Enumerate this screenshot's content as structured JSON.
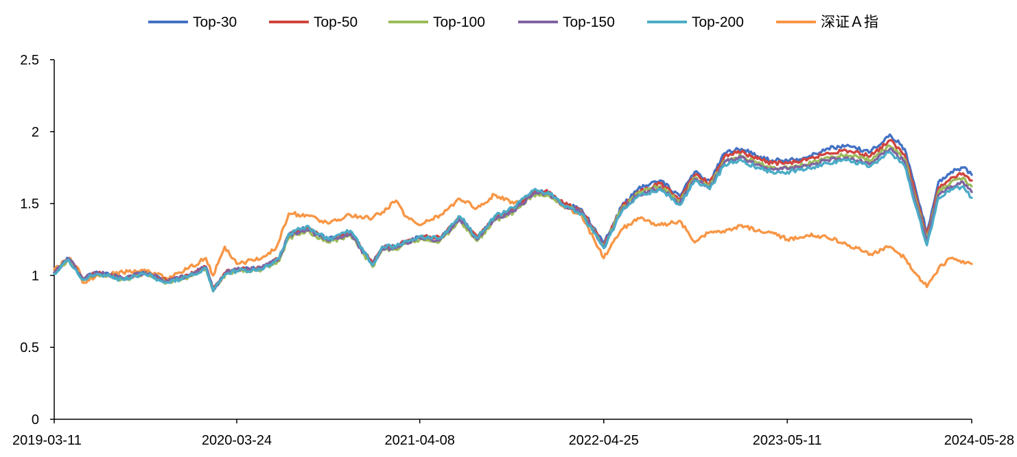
{
  "chart_data": {
    "type": "line",
    "title": "",
    "xlabel": "",
    "ylabel": "",
    "x_tick_labels": [
      "2019-03-11",
      "2020-03-24",
      "2021-04-08",
      "2022-04-25",
      "2023-05-11",
      "2024-05-28"
    ],
    "y_tick_labels": [
      "0",
      "0.5",
      "1",
      "1.5",
      "2",
      "2.5"
    ],
    "ylim": [
      0,
      2.5
    ],
    "grid": false,
    "legend_position": "top",
    "series": [
      {
        "name": "Top-30",
        "color": "#4472C4",
        "x": [
          "2019-03-11",
          "2019-04-10",
          "2019-05-09",
          "2019-06-10",
          "2019-08-01",
          "2019-09-15",
          "2019-10-31",
          "2019-12-15",
          "2020-01-20",
          "2020-02-04",
          "2020-03-01",
          "2020-03-24",
          "2020-05-15",
          "2020-06-20",
          "2020-07-10",
          "2020-08-15",
          "2020-09-30",
          "2020-11-15",
          "2020-12-31",
          "2021-01-20",
          "2021-02-18",
          "2021-03-10",
          "2021-04-08",
          "2021-05-20",
          "2021-07-01",
          "2021-08-05",
          "2021-09-10",
          "2021-10-20",
          "2021-11-30",
          "2021-12-31",
          "2022-01-31",
          "2022-03-10",
          "2022-04-25",
          "2022-06-01",
          "2022-07-05",
          "2022-08-20",
          "2022-09-30",
          "2022-10-31",
          "2022-12-01",
          "2023-01-01",
          "2023-02-05",
          "2023-03-10",
          "2023-04-10",
          "2023-05-11",
          "2023-06-20",
          "2023-07-31",
          "2023-09-10",
          "2023-10-31",
          "2023-12-10",
          "2024-01-10",
          "2024-02-05",
          "2024-02-25",
          "2024-03-20",
          "2024-04-15",
          "2024-05-10",
          "2024-05-28"
        ],
        "values": [
          1.02,
          1.12,
          0.98,
          1.02,
          0.98,
          1.02,
          0.96,
          1.0,
          1.06,
          0.9,
          1.02,
          1.04,
          1.05,
          1.12,
          1.28,
          1.33,
          1.25,
          1.3,
          1.08,
          1.2,
          1.2,
          1.24,
          1.27,
          1.26,
          1.4,
          1.26,
          1.4,
          1.46,
          1.58,
          1.58,
          1.5,
          1.46,
          1.22,
          1.48,
          1.6,
          1.66,
          1.55,
          1.72,
          1.66,
          1.85,
          1.88,
          1.83,
          1.8,
          1.8,
          1.82,
          1.88,
          1.9,
          1.86,
          1.98,
          1.88,
          1.55,
          1.3,
          1.65,
          1.72,
          1.75,
          1.7
        ]
      },
      {
        "name": "Top-50",
        "color": "#D0443E",
        "x": [
          "2019-03-11",
          "2019-04-10",
          "2019-05-09",
          "2019-06-10",
          "2019-08-01",
          "2019-09-15",
          "2019-10-31",
          "2019-12-15",
          "2020-01-20",
          "2020-02-04",
          "2020-03-01",
          "2020-03-24",
          "2020-05-15",
          "2020-06-20",
          "2020-07-10",
          "2020-08-15",
          "2020-09-30",
          "2020-11-15",
          "2020-12-31",
          "2021-01-20",
          "2021-02-18",
          "2021-03-10",
          "2021-04-08",
          "2021-05-20",
          "2021-07-01",
          "2021-08-05",
          "2021-09-10",
          "2021-10-20",
          "2021-11-30",
          "2021-12-31",
          "2022-01-31",
          "2022-03-10",
          "2022-04-25",
          "2022-06-01",
          "2022-07-05",
          "2022-08-20",
          "2022-09-30",
          "2022-10-31",
          "2022-12-01",
          "2023-01-01",
          "2023-02-05",
          "2023-03-10",
          "2023-04-10",
          "2023-05-11",
          "2023-06-20",
          "2023-07-31",
          "2023-09-10",
          "2023-10-31",
          "2023-12-10",
          "2024-01-10",
          "2024-02-05",
          "2024-02-25",
          "2024-03-20",
          "2024-04-15",
          "2024-05-10",
          "2024-05-28"
        ],
        "values": [
          1.02,
          1.12,
          0.98,
          1.02,
          0.98,
          1.02,
          0.96,
          1.0,
          1.06,
          0.9,
          1.02,
          1.04,
          1.05,
          1.12,
          1.28,
          1.33,
          1.25,
          1.3,
          1.08,
          1.2,
          1.2,
          1.24,
          1.27,
          1.26,
          1.4,
          1.26,
          1.4,
          1.46,
          1.58,
          1.58,
          1.5,
          1.45,
          1.21,
          1.47,
          1.58,
          1.64,
          1.53,
          1.7,
          1.64,
          1.83,
          1.86,
          1.81,
          1.78,
          1.78,
          1.8,
          1.85,
          1.87,
          1.83,
          1.94,
          1.84,
          1.52,
          1.27,
          1.61,
          1.68,
          1.71,
          1.66
        ]
      },
      {
        "name": "Top-100",
        "color": "#9BBB59",
        "x": [
          "2019-03-11",
          "2019-04-10",
          "2019-05-09",
          "2019-06-10",
          "2019-08-01",
          "2019-09-15",
          "2019-10-31",
          "2019-12-15",
          "2020-01-20",
          "2020-02-04",
          "2020-03-01",
          "2020-03-24",
          "2020-05-15",
          "2020-06-20",
          "2020-07-10",
          "2020-08-15",
          "2020-09-30",
          "2020-11-15",
          "2020-12-31",
          "2021-01-20",
          "2021-02-18",
          "2021-03-10",
          "2021-04-08",
          "2021-05-20",
          "2021-07-01",
          "2021-08-05",
          "2021-09-10",
          "2021-10-20",
          "2021-11-30",
          "2021-12-31",
          "2022-01-31",
          "2022-03-10",
          "2022-04-25",
          "2022-06-01",
          "2022-07-05",
          "2022-08-20",
          "2022-09-30",
          "2022-10-31",
          "2022-12-01",
          "2023-01-01",
          "2023-02-05",
          "2023-03-10",
          "2023-04-10",
          "2023-05-11",
          "2023-06-20",
          "2023-07-31",
          "2023-09-10",
          "2023-10-31",
          "2023-12-10",
          "2024-01-10",
          "2024-02-05",
          "2024-02-25",
          "2024-03-20",
          "2024-04-15",
          "2024-05-10",
          "2024-05-28"
        ],
        "values": [
          1.02,
          1.11,
          0.97,
          1.01,
          0.97,
          1.01,
          0.95,
          0.99,
          1.05,
          0.89,
          1.01,
          1.03,
          1.04,
          1.1,
          1.26,
          1.31,
          1.23,
          1.28,
          1.06,
          1.18,
          1.18,
          1.22,
          1.25,
          1.24,
          1.38,
          1.24,
          1.38,
          1.44,
          1.56,
          1.56,
          1.49,
          1.44,
          1.2,
          1.46,
          1.57,
          1.62,
          1.51,
          1.68,
          1.62,
          1.8,
          1.83,
          1.78,
          1.75,
          1.75,
          1.77,
          1.82,
          1.84,
          1.8,
          1.9,
          1.81,
          1.49,
          1.25,
          1.58,
          1.65,
          1.68,
          1.62
        ]
      },
      {
        "name": "Top-150",
        "color": "#8064A2",
        "x": [
          "2019-03-11",
          "2019-04-10",
          "2019-05-09",
          "2019-06-10",
          "2019-08-01",
          "2019-09-15",
          "2019-10-31",
          "2019-12-15",
          "2020-01-20",
          "2020-02-04",
          "2020-03-01",
          "2020-03-24",
          "2020-05-15",
          "2020-06-20",
          "2020-07-10",
          "2020-08-15",
          "2020-09-30",
          "2020-11-15",
          "2020-12-31",
          "2021-01-20",
          "2021-02-18",
          "2021-03-10",
          "2021-04-08",
          "2021-05-20",
          "2021-07-01",
          "2021-08-05",
          "2021-09-10",
          "2021-10-20",
          "2021-11-30",
          "2021-12-31",
          "2022-01-31",
          "2022-03-10",
          "2022-04-25",
          "2022-06-01",
          "2022-07-05",
          "2022-08-20",
          "2022-09-30",
          "2022-10-31",
          "2022-12-01",
          "2023-01-01",
          "2023-02-05",
          "2023-03-10",
          "2023-04-10",
          "2023-05-11",
          "2023-06-20",
          "2023-07-31",
          "2023-09-10",
          "2023-10-31",
          "2023-12-10",
          "2024-01-10",
          "2024-02-05",
          "2024-02-25",
          "2024-03-20",
          "2024-04-15",
          "2024-05-10",
          "2024-05-28"
        ],
        "values": [
          1.02,
          1.12,
          0.98,
          1.02,
          0.98,
          1.02,
          0.96,
          1.0,
          1.06,
          0.9,
          1.02,
          1.04,
          1.05,
          1.12,
          1.28,
          1.32,
          1.24,
          1.29,
          1.07,
          1.19,
          1.19,
          1.23,
          1.26,
          1.25,
          1.39,
          1.25,
          1.39,
          1.45,
          1.57,
          1.57,
          1.49,
          1.44,
          1.2,
          1.45,
          1.56,
          1.61,
          1.5,
          1.67,
          1.61,
          1.79,
          1.82,
          1.77,
          1.74,
          1.74,
          1.76,
          1.8,
          1.82,
          1.78,
          1.88,
          1.79,
          1.47,
          1.24,
          1.56,
          1.62,
          1.65,
          1.58
        ]
      },
      {
        "name": "Top-200",
        "color": "#4BACC6",
        "x": [
          "2019-03-11",
          "2019-04-10",
          "2019-05-09",
          "2019-06-10",
          "2019-08-01",
          "2019-09-15",
          "2019-10-31",
          "2019-12-15",
          "2020-01-20",
          "2020-02-04",
          "2020-03-01",
          "2020-03-24",
          "2020-05-15",
          "2020-06-20",
          "2020-07-10",
          "2020-08-15",
          "2020-09-30",
          "2020-11-15",
          "2020-12-31",
          "2021-01-20",
          "2021-02-18",
          "2021-03-10",
          "2021-04-08",
          "2021-05-20",
          "2021-07-01",
          "2021-08-05",
          "2021-09-10",
          "2021-10-20",
          "2021-11-30",
          "2021-12-31",
          "2022-01-31",
          "2022-03-10",
          "2022-04-25",
          "2022-06-01",
          "2022-07-05",
          "2022-08-20",
          "2022-09-30",
          "2022-10-31",
          "2022-12-01",
          "2023-01-01",
          "2023-02-05",
          "2023-03-10",
          "2023-04-10",
          "2023-05-11",
          "2023-06-20",
          "2023-07-31",
          "2023-09-10",
          "2023-10-31",
          "2023-12-10",
          "2024-01-10",
          "2024-02-05",
          "2024-02-25",
          "2024-03-20",
          "2024-04-15",
          "2024-05-10",
          "2024-05-28"
        ],
        "values": [
          1.01,
          1.11,
          0.97,
          1.01,
          0.97,
          1.01,
          0.95,
          0.99,
          1.05,
          0.89,
          1.01,
          1.03,
          1.04,
          1.12,
          1.29,
          1.34,
          1.25,
          1.31,
          1.07,
          1.2,
          1.2,
          1.24,
          1.27,
          1.26,
          1.41,
          1.26,
          1.41,
          1.47,
          1.59,
          1.58,
          1.49,
          1.43,
          1.19,
          1.44,
          1.55,
          1.6,
          1.49,
          1.66,
          1.6,
          1.77,
          1.8,
          1.75,
          1.72,
          1.72,
          1.74,
          1.78,
          1.8,
          1.76,
          1.86,
          1.76,
          1.45,
          1.21,
          1.54,
          1.6,
          1.62,
          1.54
        ]
      },
      {
        "name": "深证Ａ指",
        "color": "#F79646",
        "x": [
          "2019-03-11",
          "2019-04-10",
          "2019-04-30",
          "2019-05-09",
          "2019-06-10",
          "2019-08-01",
          "2019-09-15",
          "2019-10-31",
          "2019-12-15",
          "2020-01-20",
          "2020-02-04",
          "2020-02-28",
          "2020-03-24",
          "2020-05-15",
          "2020-06-15",
          "2020-07-10",
          "2020-08-15",
          "2020-09-30",
          "2020-11-15",
          "2020-12-31",
          "2021-01-20",
          "2021-02-18",
          "2021-03-10",
          "2021-04-08",
          "2021-05-20",
          "2021-07-01",
          "2021-08-05",
          "2021-09-10",
          "2021-10-20",
          "2021-11-30",
          "2021-12-31",
          "2022-01-31",
          "2022-03-10",
          "2022-04-25",
          "2022-06-01",
          "2022-07-05",
          "2022-08-20",
          "2022-09-30",
          "2022-10-31",
          "2022-12-01",
          "2023-01-01",
          "2023-02-05",
          "2023-03-10",
          "2023-04-10",
          "2023-05-11",
          "2023-06-20",
          "2023-07-31",
          "2023-09-10",
          "2023-10-31",
          "2023-12-10",
          "2024-01-10",
          "2024-02-05",
          "2024-02-25",
          "2024-03-20",
          "2024-04-15",
          "2024-05-10",
          "2024-05-28"
        ],
        "values": [
          1.04,
          1.12,
          1.05,
          0.95,
          1.0,
          1.02,
          1.04,
          0.98,
          1.05,
          1.12,
          1.0,
          1.2,
          1.08,
          1.12,
          1.2,
          1.43,
          1.42,
          1.36,
          1.42,
          1.4,
          1.44,
          1.52,
          1.41,
          1.35,
          1.42,
          1.53,
          1.47,
          1.56,
          1.5,
          1.56,
          1.58,
          1.48,
          1.42,
          1.12,
          1.32,
          1.4,
          1.35,
          1.38,
          1.23,
          1.3,
          1.3,
          1.35,
          1.31,
          1.3,
          1.25,
          1.28,
          1.27,
          1.22,
          1.15,
          1.2,
          1.12,
          1.0,
          0.92,
          1.05,
          1.12,
          1.1,
          1.08
        ]
      }
    ]
  }
}
